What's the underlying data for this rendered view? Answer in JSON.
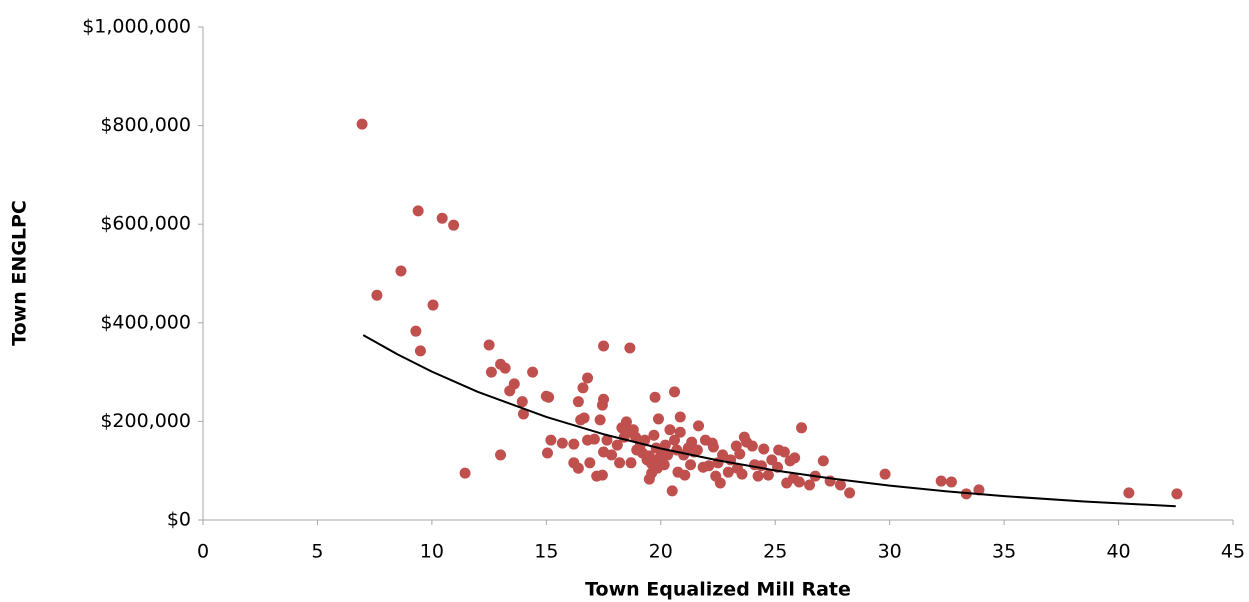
{
  "chart_data": {
    "type": "scatter",
    "x_label": "Town Equalized Mill Rate",
    "y_label": "Town ENGLPC",
    "color": "#c0504d",
    "x": [
      6.95,
      7.6,
      8.65,
      9.4,
      9.3,
      10.05,
      10.45,
      10.95,
      9.5,
      11.45,
      12.5,
      12.6,
      13.0,
      13.0,
      13.2,
      13.4,
      13.6,
      13.95,
      14.0,
      14.4,
      15.0,
      15.1,
      15.05,
      15.2,
      15.7,
      16.2,
      16.2,
      16.4,
      16.4,
      16.5,
      16.6,
      16.65,
      16.8,
      16.8,
      16.9,
      17.1,
      17.2,
      17.35,
      17.45,
      17.5,
      17.5,
      17.45,
      17.5,
      17.65,
      17.85,
      18.1,
      18.2,
      18.3,
      18.4,
      18.5,
      18.55,
      18.65,
      18.7,
      18.8,
      18.9,
      18.95,
      19.1,
      19.2,
      19.3,
      19.4,
      19.5,
      19.5,
      19.6,
      19.6,
      19.7,
      19.75,
      19.8,
      19.85,
      19.9,
      19.95,
      20.05,
      20.15,
      20.2,
      20.3,
      20.4,
      20.5,
      20.6,
      20.6,
      20.7,
      20.75,
      20.85,
      20.85,
      21.0,
      21.05,
      21.2,
      21.3,
      21.35,
      21.45,
      21.6,
      21.65,
      21.85,
      21.95,
      22.1,
      22.25,
      22.3,
      22.4,
      22.5,
      22.6,
      22.7,
      22.95,
      23.05,
      23.3,
      23.35,
      23.45,
      23.55,
      23.65,
      23.75,
      24.0,
      24.1,
      24.25,
      24.4,
      24.5,
      24.7,
      24.85,
      25.1,
      25.15,
      25.4,
      25.5,
      25.65,
      25.8,
      25.85,
      26.05,
      26.15,
      26.5,
      26.75,
      27.1,
      27.4,
      27.85,
      28.25,
      29.8,
      32.25,
      32.7,
      33.35,
      33.9,
      40.45,
      42.55
    ],
    "values": [
      803000,
      456000,
      505000,
      627000,
      383000,
      436000,
      612000,
      598000,
      343000,
      95000,
      355000,
      300000,
      316000,
      132000,
      308000,
      262000,
      276000,
      240000,
      215000,
      300000,
      251000,
      249000,
      136000,
      162000,
      156000,
      154000,
      116000,
      105000,
      240000,
      203000,
      268000,
      207000,
      288000,
      162000,
      116000,
      164000,
      89000,
      203000,
      233000,
      245000,
      353000,
      91000,
      138000,
      162000,
      132000,
      152000,
      116000,
      187000,
      168000,
      199000,
      178000,
      349000,
      116000,
      183000,
      168000,
      142000,
      152000,
      136000,
      162000,
      122000,
      83000,
      130000,
      114000,
      95000,
      172000,
      249000,
      146000,
      105000,
      205000,
      126000,
      138000,
      112000,
      152000,
      132000,
      183000,
      59000,
      162000,
      260000,
      142000,
      97000,
      209000,
      178000,
      132000,
      91000,
      146000,
      112000,
      158000,
      138000,
      142000,
      191000,
      107000,
      162000,
      110000,
      156000,
      148000,
      89000,
      116000,
      75000,
      132000,
      97000,
      122000,
      150000,
      105000,
      134000,
      93000,
      168000,
      158000,
      150000,
      112000,
      89000,
      110000,
      144000,
      91000,
      122000,
      107000,
      142000,
      138000,
      75000,
      120000,
      85000,
      126000,
      77000,
      187000,
      71000,
      89000,
      120000,
      79000,
      71000,
      55000,
      93000,
      79000,
      77000,
      53000,
      61000,
      55000,
      53000
    ],
    "trendline": {
      "color": "#000000",
      "x": [
        7,
        8.5,
        10,
        12,
        15,
        17.5,
        20,
        22.5,
        25,
        27.5,
        30,
        32.5,
        35,
        38.5,
        42.5
      ],
      "values": [
        375000,
        336000,
        301000,
        260000,
        209000,
        174000,
        145000,
        121000,
        100500,
        84000,
        69800,
        58000,
        48400,
        37500,
        28000
      ]
    },
    "xlim": [
      0,
      45
    ],
    "xticks": [
      0,
      5,
      10,
      15,
      20,
      25,
      30,
      35,
      40,
      45
    ],
    "ylim": [
      0,
      1000000
    ],
    "yticks": [
      {
        "value": 0,
        "label": "$0"
      },
      {
        "value": 200000,
        "label": "$200,000"
      },
      {
        "value": 400000,
        "label": "$400,000"
      },
      {
        "value": 600000,
        "label": "$600,000"
      },
      {
        "value": 800000,
        "label": "$800,000"
      },
      {
        "value": 1000000,
        "label": "$1,000,000"
      }
    ],
    "grid": false
  }
}
